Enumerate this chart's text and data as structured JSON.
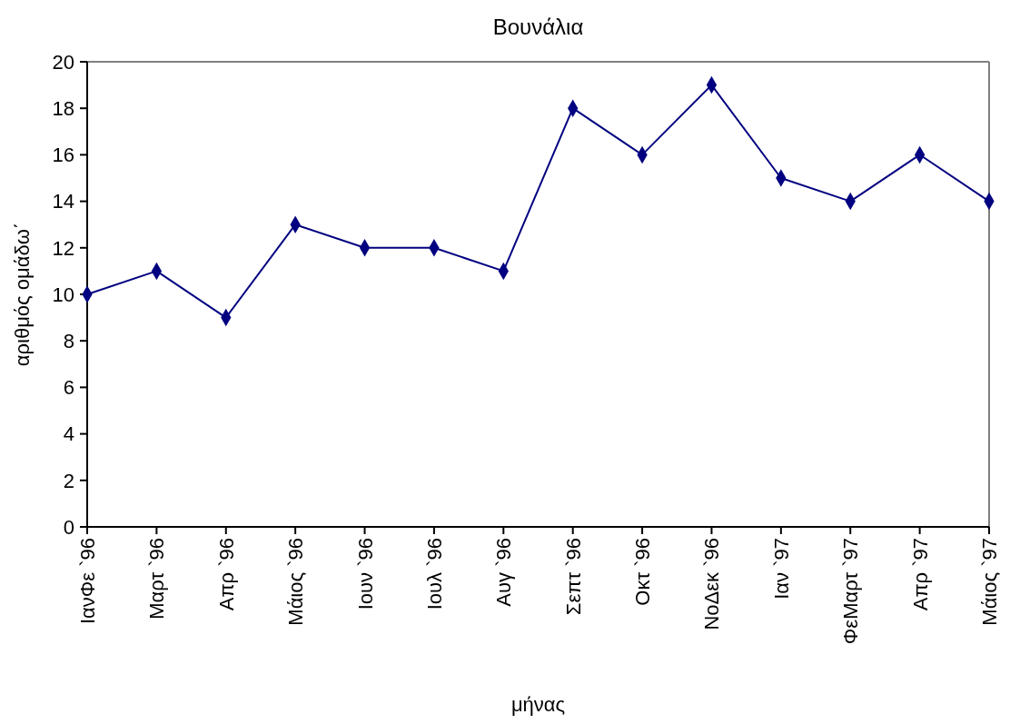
{
  "chart_data": {
    "type": "line",
    "title": "Βουνάλια",
    "xlabel": "μήνας",
    "ylabel": "αριθμός ομάδω΄",
    "categories": [
      "ΙανΦε `96",
      "Μαρτ `96",
      "Απρ `96",
      "Μάιος `96",
      "Ιουν `96",
      "Ιουλ `96",
      "Αυγ `96",
      "Σεπτ `96",
      "Οκτ `96",
      "ΝοΔεκ `96",
      "Ιαν `97",
      "ΦεΜαρτ `97",
      "Απρ `97",
      "Μάιος `97"
    ],
    "series": [
      {
        "color": "#000080",
        "values": [
          10,
          11,
          9,
          13,
          12,
          12,
          11,
          18,
          16,
          19,
          15,
          14,
          16,
          14
        ]
      }
    ],
    "ylim": [
      0,
      20
    ],
    "yticks": [
      0,
      2,
      4,
      6,
      8,
      10,
      12,
      14,
      16,
      18,
      20
    ],
    "marker": "diamond"
  }
}
